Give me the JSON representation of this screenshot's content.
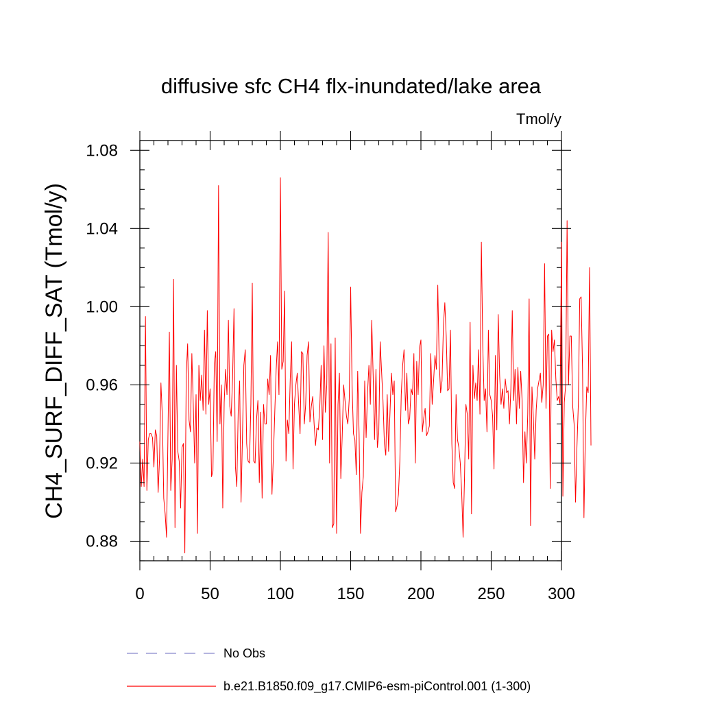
{
  "chart_data": {
    "type": "line",
    "title": "diffusive sfc CH4 flx-inundated/lake area",
    "units": "Tmol/y",
    "xlabel": "",
    "ylabel": "CH4_SURF_DIFF_SAT  (Tmol/y)",
    "xlim": [
      0,
      300
    ],
    "ylim": [
      0.87,
      1.085
    ],
    "xticks": [
      0,
      50,
      100,
      150,
      200,
      250,
      300
    ],
    "xtick_labels": [
      "0",
      "50",
      "100",
      "150",
      "200",
      "250",
      "300"
    ],
    "yticks": [
      0.88,
      0.92,
      0.96,
      1.0,
      1.04,
      1.08
    ],
    "ytick_labels": [
      "0.88",
      "0.92",
      "0.96",
      "1.00",
      "1.04",
      "1.08"
    ],
    "grid": false,
    "legend": [
      {
        "name": "No Obs",
        "color": "#8888cc",
        "style": "dashed"
      },
      {
        "name": "b.e21.B1850.f09_g17.CMIP6-esm-piControl.001 (1-300)",
        "color": "#ff0000",
        "style": "solid"
      }
    ],
    "series": [
      {
        "name": "b.e21.B1850.f09_g17.CMIP6-esm-piControl.001 (1-300)",
        "color": "#ff0000",
        "x_start": 0,
        "x_step": 1,
        "values": [
          0.931,
          0.908,
          0.922,
          0.908,
          0.995,
          0.906,
          0.932,
          0.935,
          0.935,
          0.933,
          0.918,
          0.937,
          0.934,
          0.905,
          0.922,
          0.961,
          0.944,
          0.902,
          0.894,
          0.882,
          0.935,
          0.987,
          0.906,
          0.922,
          1.014,
          0.887,
          0.97,
          0.926,
          0.921,
          0.897,
          0.928,
          0.93,
          0.874,
          0.965,
          0.981,
          0.942,
          0.936,
          0.976,
          0.95,
          0.92,
          0.955,
          0.884,
          0.97,
          0.952,
          0.965,
          0.947,
          0.988,
          0.945,
          0.998,
          0.95,
          0.958,
          0.913,
          0.916,
          0.971,
          0.977,
          0.931,
          1.062,
          0.94,
          0.96,
          0.897,
          0.951,
          0.968,
          0.955,
          0.993,
          0.949,
          0.944,
          0.964,
          0.999,
          0.918,
          0.908,
          0.947,
          0.962,
          0.9,
          0.933,
          0.97,
          0.978,
          0.93,
          0.921,
          0.92,
          0.95,
          1.012,
          0.921,
          0.92,
          0.942,
          0.952,
          0.91,
          0.946,
          0.902,
          0.95,
          0.94,
          0.94,
          0.963,
          0.955,
          0.975,
          0.904,
          0.923,
          0.946,
          0.968,
          0.982,
          0.955,
          1.066,
          0.968,
          0.972,
          1.008,
          0.921,
          0.942,
          0.935,
          0.963,
          0.982,
          0.917,
          0.95,
          0.96,
          0.966,
          0.95,
          0.935,
          0.977,
          0.976,
          0.94,
          0.95,
          0.975,
          0.982,
          0.941,
          0.949,
          0.954,
          0.94,
          0.929,
          0.938,
          0.937,
          0.948,
          0.97,
          0.932,
          0.98,
          0.946,
          0.96,
          1.038,
          0.92,
          0.981,
          0.887,
          0.889,
          0.984,
          0.884,
          0.95,
          0.966,
          0.912,
          0.934,
          0.96,
          0.952,
          0.944,
          0.94,
          0.953,
          1.01,
          0.96,
          0.935,
          0.932,
          0.914,
          0.967,
          0.935,
          0.884,
          0.905,
          0.913,
          0.962,
          0.933,
          0.956,
          0.97,
          0.95,
          0.993,
          0.965,
          0.932,
          0.968,
          0.928,
          0.935,
          0.982,
          0.967,
          0.952,
          0.93,
          0.924,
          0.955,
          0.926,
          0.946,
          0.966,
          0.955,
          0.962,
          0.895,
          0.898,
          0.904,
          0.921,
          0.955,
          0.97,
          0.978,
          0.947,
          0.966,
          0.94,
          0.943,
          0.958,
          0.955,
          0.976,
          0.92,
          0.972,
          0.955,
          0.979,
          0.983,
          0.936,
          0.943,
          0.948,
          0.934,
          0.936,
          0.939,
          0.976,
          0.95,
          0.962,
          0.975,
          0.968,
          1.011,
          0.972,
          0.956,
          0.962,
          0.99,
          1.002,
          0.985,
          0.957,
          0.958,
          0.988,
          0.93,
          0.91,
          0.907,
          0.955,
          0.932,
          0.928,
          0.92,
          0.905,
          0.882,
          0.912,
          0.95,
          0.945,
          0.922,
          0.992,
          0.894,
          0.97,
          0.953,
          0.961,
          0.952,
          0.978,
          0.945,
          1.033,
          0.98,
          0.952,
          0.958,
          0.936,
          0.988,
          0.955,
          0.952,
          0.944,
          0.917,
          0.975,
          0.937,
          0.996,
          0.965,
          0.95,
          0.958,
          0.948,
          0.963,
          0.956,
          0.957,
          0.94,
          0.958,
          0.998,
          0.952,
          0.968,
          0.94,
          0.969,
          0.948,
          0.967,
          0.952,
          0.91,
          0.936,
          0.92,
          0.945,
          1.004,
          0.888,
          0.959,
          0.943,
          0.922,
          0.947,
          0.958,
          0.962,
          0.966,
          0.951,
          0.96,
          1.022,
          0.948,
          0.985,
          0.986,
          0.907,
          0.988,
          0.977,
          0.983,
          0.963,
          0.952,
          0.954,
          0.95,
          1.033,
          0.903,
          0.951,
          0.96,
          1.044,
          0.96,
          0.985,
          0.985,
          0.949,
          0.94,
          0.9,
          0.928,
          0.95,
          1.004,
          1.005,
          0.968,
          0.892,
          0.934,
          0.959,
          0.956,
          1.02,
          0.929
        ]
      }
    ]
  }
}
